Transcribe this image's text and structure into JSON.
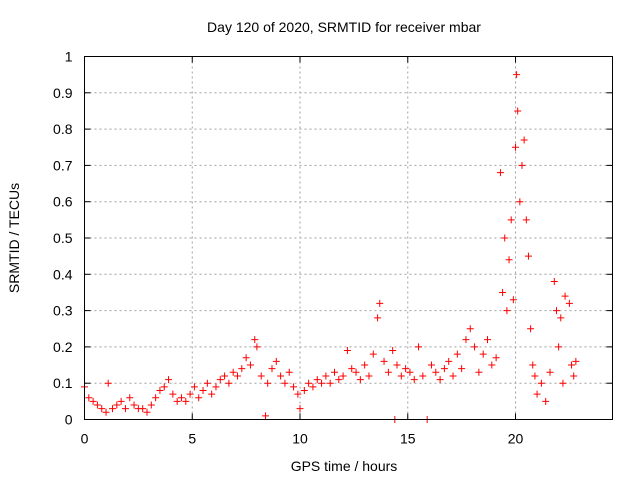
{
  "chart_data": {
    "type": "scatter",
    "title": "Day 120 of 2020, SRMTID for receiver mbar",
    "xlabel": "GPS time / hours",
    "ylabel": "SRMTID / TECUs",
    "xlim": [
      0,
      24.5
    ],
    "ylim": [
      0,
      1
    ],
    "xticks": [
      0,
      5,
      10,
      15,
      20
    ],
    "xtick_labels": [
      "0",
      "5",
      "10",
      "15",
      "20"
    ],
    "yticks": [
      0,
      0.1,
      0.2,
      0.3,
      0.4,
      0.5,
      0.6,
      0.7,
      0.8,
      0.9,
      1
    ],
    "ytick_labels": [
      "0",
      "0.1",
      "0.2",
      "0.3",
      "0.4",
      "0.5",
      "0.6",
      "0.7",
      "0.8",
      "0.9",
      "1"
    ],
    "grid": true,
    "marker": "plus",
    "color": "#ff0000",
    "series": [
      {
        "name": "SRMTID",
        "points": [
          [
            0.0,
            0.09
          ],
          [
            0.2,
            0.06
          ],
          [
            0.4,
            0.05
          ],
          [
            0.6,
            0.04
          ],
          [
            0.8,
            0.03
          ],
          [
            1.0,
            0.02
          ],
          [
            1.1,
            0.1
          ],
          [
            1.3,
            0.03
          ],
          [
            1.5,
            0.04
          ],
          [
            1.7,
            0.05
          ],
          [
            1.9,
            0.03
          ],
          [
            2.1,
            0.06
          ],
          [
            2.3,
            0.04
          ],
          [
            2.5,
            0.03
          ],
          [
            2.7,
            0.03
          ],
          [
            2.9,
            0.02
          ],
          [
            3.1,
            0.04
          ],
          [
            3.3,
            0.06
          ],
          [
            3.5,
            0.08
          ],
          [
            3.7,
            0.09
          ],
          [
            3.9,
            0.11
          ],
          [
            4.1,
            0.07
          ],
          [
            4.3,
            0.05
          ],
          [
            4.5,
            0.06
          ],
          [
            4.7,
            0.05
          ],
          [
            4.9,
            0.07
          ],
          [
            5.1,
            0.09
          ],
          [
            5.3,
            0.06
          ],
          [
            5.5,
            0.08
          ],
          [
            5.7,
            0.1
          ],
          [
            5.9,
            0.07
          ],
          [
            6.1,
            0.09
          ],
          [
            6.3,
            0.11
          ],
          [
            6.5,
            0.12
          ],
          [
            6.7,
            0.1
          ],
          [
            6.9,
            0.13
          ],
          [
            7.1,
            0.12
          ],
          [
            7.3,
            0.14
          ],
          [
            7.5,
            0.17
          ],
          [
            7.7,
            0.15
          ],
          [
            7.9,
            0.22
          ],
          [
            8.0,
            0.2
          ],
          [
            8.2,
            0.12
          ],
          [
            8.4,
            0.01
          ],
          [
            8.5,
            0.1
          ],
          [
            8.7,
            0.14
          ],
          [
            8.9,
            0.16
          ],
          [
            9.1,
            0.12
          ],
          [
            9.3,
            0.1
          ],
          [
            9.5,
            0.13
          ],
          [
            9.7,
            0.09
          ],
          [
            9.9,
            0.07
          ],
          [
            10.0,
            0.03
          ],
          [
            10.2,
            0.08
          ],
          [
            10.4,
            0.1
          ],
          [
            10.6,
            0.09
          ],
          [
            10.8,
            0.11
          ],
          [
            11.0,
            0.1
          ],
          [
            11.2,
            0.12
          ],
          [
            11.4,
            0.1
          ],
          [
            11.6,
            0.13
          ],
          [
            11.8,
            0.11
          ],
          [
            12.0,
            0.12
          ],
          [
            12.2,
            0.19
          ],
          [
            12.4,
            0.14
          ],
          [
            12.6,
            0.13
          ],
          [
            12.8,
            0.11
          ],
          [
            13.0,
            0.15
          ],
          [
            13.2,
            0.12
          ],
          [
            13.4,
            0.18
          ],
          [
            13.6,
            0.28
          ],
          [
            13.7,
            0.32
          ],
          [
            13.9,
            0.16
          ],
          [
            14.1,
            0.13
          ],
          [
            14.3,
            0.19
          ],
          [
            14.5,
            0.15
          ],
          [
            14.4,
            0.0
          ],
          [
            14.7,
            0.12
          ],
          [
            14.9,
            0.14
          ],
          [
            15.1,
            0.13
          ],
          [
            15.3,
            0.11
          ],
          [
            15.5,
            0.2
          ],
          [
            15.7,
            0.12
          ],
          [
            15.9,
            0.0
          ],
          [
            16.1,
            0.15
          ],
          [
            16.3,
            0.13
          ],
          [
            16.5,
            0.11
          ],
          [
            16.7,
            0.14
          ],
          [
            16.9,
            0.16
          ],
          [
            17.1,
            0.12
          ],
          [
            17.3,
            0.18
          ],
          [
            17.5,
            0.14
          ],
          [
            17.7,
            0.22
          ],
          [
            17.9,
            0.25
          ],
          [
            18.1,
            0.2
          ],
          [
            18.3,
            0.13
          ],
          [
            18.5,
            0.18
          ],
          [
            18.7,
            0.22
          ],
          [
            18.9,
            0.15
          ],
          [
            19.1,
            0.17
          ],
          [
            19.3,
            0.68
          ],
          [
            19.4,
            0.35
          ],
          [
            19.5,
            0.5
          ],
          [
            19.6,
            0.3
          ],
          [
            19.7,
            0.44
          ],
          [
            19.8,
            0.55
          ],
          [
            19.9,
            0.33
          ],
          [
            20.0,
            0.75
          ],
          [
            20.05,
            0.95
          ],
          [
            20.1,
            0.85
          ],
          [
            20.2,
            0.6
          ],
          [
            20.3,
            0.7
          ],
          [
            20.4,
            0.77
          ],
          [
            20.5,
            0.55
          ],
          [
            20.6,
            0.45
          ],
          [
            20.7,
            0.25
          ],
          [
            20.8,
            0.15
          ],
          [
            20.9,
            0.12
          ],
          [
            21.0,
            0.07
          ],
          [
            21.2,
            0.1
          ],
          [
            21.4,
            0.05
          ],
          [
            21.6,
            0.13
          ],
          [
            21.8,
            0.38
          ],
          [
            21.9,
            0.3
          ],
          [
            22.0,
            0.2
          ],
          [
            22.1,
            0.28
          ],
          [
            22.2,
            0.1
          ],
          [
            22.3,
            0.34
          ],
          [
            22.5,
            0.32
          ],
          [
            22.6,
            0.15
          ],
          [
            22.7,
            0.12
          ],
          [
            22.8,
            0.16
          ]
        ]
      }
    ]
  }
}
